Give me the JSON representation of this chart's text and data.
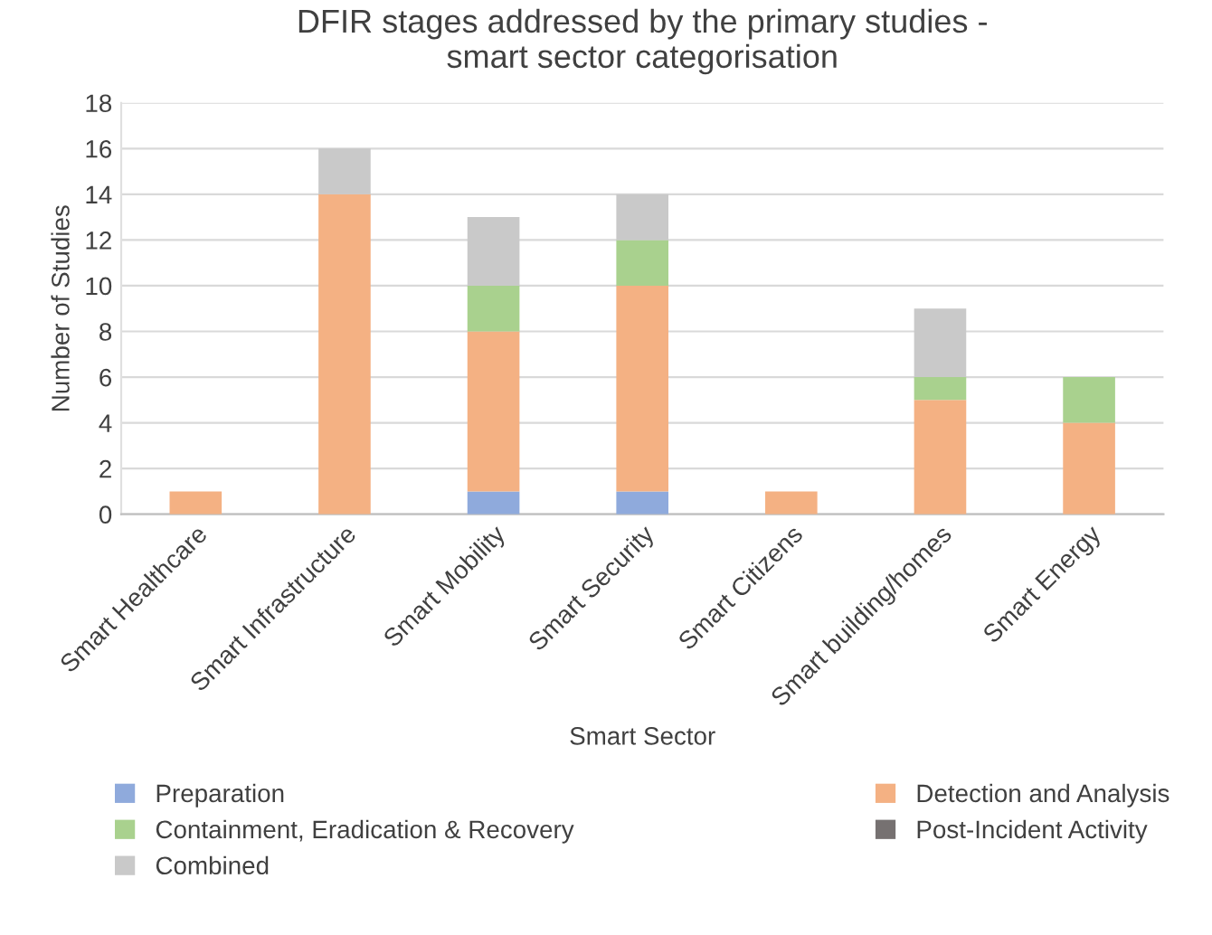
{
  "chart_data": {
    "type": "bar",
    "stacked": true,
    "title": "DFIR stages addressed by the primary studies -\nsmart sector categorisation",
    "xlabel": "Smart Sector",
    "ylabel": "Number of Studies",
    "categories": [
      "Smart Healthcare",
      "Smart Infrastructure",
      "Smart Mobility",
      "Smart Security",
      "Smart Citizens",
      "Smart building/homes",
      "Smart Energy"
    ],
    "series": [
      {
        "name": "Preparation",
        "color": "#8faadc",
        "values": [
          0,
          0,
          1,
          1,
          0,
          0,
          0
        ]
      },
      {
        "name": "Detection and Analysis",
        "color": "#f4b183",
        "values": [
          1,
          14,
          7,
          9,
          1,
          5,
          4
        ]
      },
      {
        "name": "Containment, Eradication & Recovery",
        "color": "#a9d18e",
        "values": [
          0,
          0,
          2,
          2,
          0,
          1,
          2
        ]
      },
      {
        "name": "Post-Incident Activity",
        "color": "#767171",
        "values": [
          0,
          0,
          0,
          0,
          0,
          0,
          0
        ]
      },
      {
        "name": "Combined",
        "color": "#c9c9c9",
        "values": [
          0,
          2,
          3,
          2,
          0,
          3,
          0
        ]
      }
    ],
    "ylim": [
      0,
      18
    ],
    "yticks": [
      0,
      2,
      4,
      6,
      8,
      10,
      12,
      14,
      16,
      18
    ],
    "grid": "y",
    "legend": "bottom"
  }
}
